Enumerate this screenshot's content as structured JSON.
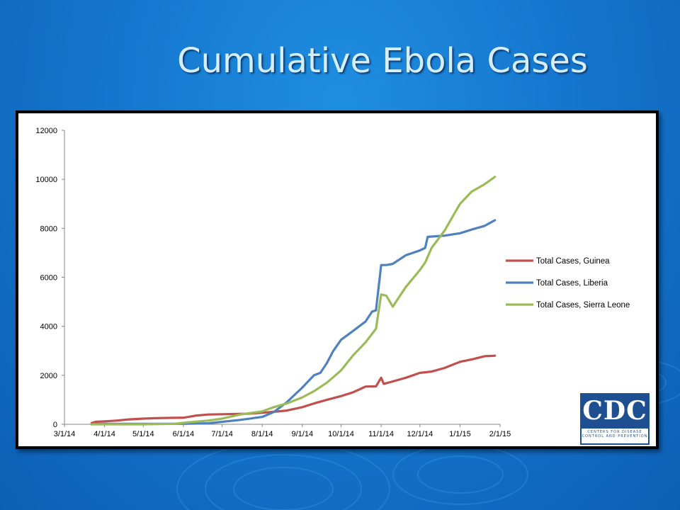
{
  "slide": {
    "title": "Cumulative Ebola Cases"
  },
  "logo": {
    "text": "CDC",
    "subtitle_line1": "CENTERS FOR DISEASE",
    "subtitle_line2": "CONTROL AND PREVENTION"
  },
  "chart_data": {
    "type": "line",
    "title": "",
    "xlabel": "",
    "ylabel": "",
    "ylim": [
      0,
      12000
    ],
    "yticks": [
      0,
      2000,
      4000,
      6000,
      8000,
      10000,
      12000
    ],
    "xticks": [
      "3/1/14",
      "4/1/14",
      "5/1/14",
      "6/1/14",
      "7/1/14",
      "8/1/14",
      "9/1/14",
      "10/1/14",
      "11/1/14",
      "12/1/14",
      "1/1/15",
      "2/1/15"
    ],
    "xlim": [
      "2014-03-01",
      "2015-02-01"
    ],
    "grid": false,
    "legend_position": "right",
    "series": [
      {
        "name": "Total Cases, Guinea",
        "color": "#c0504d",
        "points": [
          [
            "2014-03-22",
            50
          ],
          [
            "2014-03-25",
            100
          ],
          [
            "2014-04-01",
            120
          ],
          [
            "2014-04-10",
            150
          ],
          [
            "2014-04-20",
            200
          ],
          [
            "2014-05-01",
            230
          ],
          [
            "2014-05-10",
            250
          ],
          [
            "2014-05-20",
            260
          ],
          [
            "2014-06-01",
            270
          ],
          [
            "2014-06-05",
            300
          ],
          [
            "2014-06-10",
            350
          ],
          [
            "2014-06-20",
            400
          ],
          [
            "2014-07-01",
            410
          ],
          [
            "2014-07-10",
            420
          ],
          [
            "2014-07-20",
            430
          ],
          [
            "2014-08-01",
            470
          ],
          [
            "2014-08-10",
            510
          ],
          [
            "2014-08-20",
            560
          ],
          [
            "2014-09-01",
            700
          ],
          [
            "2014-09-10",
            850
          ],
          [
            "2014-09-20",
            1000
          ],
          [
            "2014-10-01",
            1150
          ],
          [
            "2014-10-10",
            1300
          ],
          [
            "2014-10-20",
            1540
          ],
          [
            "2014-10-28",
            1550
          ],
          [
            "2014-11-01",
            1900
          ],
          [
            "2014-11-03",
            1650
          ],
          [
            "2014-11-10",
            1750
          ],
          [
            "2014-11-20",
            1900
          ],
          [
            "2014-12-01",
            2100
          ],
          [
            "2014-12-10",
            2150
          ],
          [
            "2014-12-20",
            2300
          ],
          [
            "2015-01-01",
            2550
          ],
          [
            "2015-01-10",
            2650
          ],
          [
            "2015-01-20",
            2780
          ],
          [
            "2015-01-28",
            2800
          ]
        ]
      },
      {
        "name": "Total Cases, Liberia",
        "color": "#4f81bd",
        "points": [
          [
            "2014-03-22",
            10
          ],
          [
            "2014-04-01",
            20
          ],
          [
            "2014-05-01",
            20
          ],
          [
            "2014-06-01",
            20
          ],
          [
            "2014-06-20",
            40
          ],
          [
            "2014-07-01",
            100
          ],
          [
            "2014-07-15",
            180
          ],
          [
            "2014-08-01",
            300
          ],
          [
            "2014-08-10",
            500
          ],
          [
            "2014-08-20",
            900
          ],
          [
            "2014-09-01",
            1500
          ],
          [
            "2014-09-10",
            2000
          ],
          [
            "2014-09-15",
            2100
          ],
          [
            "2014-09-20",
            2500
          ],
          [
            "2014-09-25",
            3000
          ],
          [
            "2014-10-01",
            3450
          ],
          [
            "2014-10-10",
            3800
          ],
          [
            "2014-10-20",
            4200
          ],
          [
            "2014-10-25",
            4600
          ],
          [
            "2014-10-28",
            4650
          ],
          [
            "2014-11-01",
            6500
          ],
          [
            "2014-11-05",
            6500
          ],
          [
            "2014-11-10",
            6550
          ],
          [
            "2014-11-20",
            6900
          ],
          [
            "2014-12-01",
            7100
          ],
          [
            "2014-12-05",
            7200
          ],
          [
            "2014-12-07",
            7650
          ],
          [
            "2014-12-20",
            7700
          ],
          [
            "2015-01-01",
            7800
          ],
          [
            "2015-01-10",
            7950
          ],
          [
            "2015-01-20",
            8100
          ],
          [
            "2015-01-28",
            8330
          ]
        ]
      },
      {
        "name": "Total Cases, Sierra Leone",
        "color": "#9bbb59",
        "points": [
          [
            "2014-03-22",
            0
          ],
          [
            "2014-04-01",
            0
          ],
          [
            "2014-05-01",
            0
          ],
          [
            "2014-05-25",
            20
          ],
          [
            "2014-06-05",
            80
          ],
          [
            "2014-06-20",
            150
          ],
          [
            "2014-07-01",
            230
          ],
          [
            "2014-07-15",
            400
          ],
          [
            "2014-08-01",
            530
          ],
          [
            "2014-08-10",
            700
          ],
          [
            "2014-08-20",
            850
          ],
          [
            "2014-09-01",
            1100
          ],
          [
            "2014-09-10",
            1350
          ],
          [
            "2014-09-20",
            1700
          ],
          [
            "2014-10-01",
            2200
          ],
          [
            "2014-10-10",
            2800
          ],
          [
            "2014-10-20",
            3350
          ],
          [
            "2014-10-28",
            3900
          ],
          [
            "2014-11-01",
            5300
          ],
          [
            "2014-11-05",
            5250
          ],
          [
            "2014-11-10",
            4800
          ],
          [
            "2014-11-20",
            5600
          ],
          [
            "2014-12-01",
            6300
          ],
          [
            "2014-12-05",
            6600
          ],
          [
            "2014-12-10",
            7200
          ],
          [
            "2014-12-20",
            7900
          ],
          [
            "2015-01-01",
            9000
          ],
          [
            "2015-01-10",
            9500
          ],
          [
            "2015-01-20",
            9800
          ],
          [
            "2015-01-28",
            10100
          ]
        ]
      }
    ]
  }
}
